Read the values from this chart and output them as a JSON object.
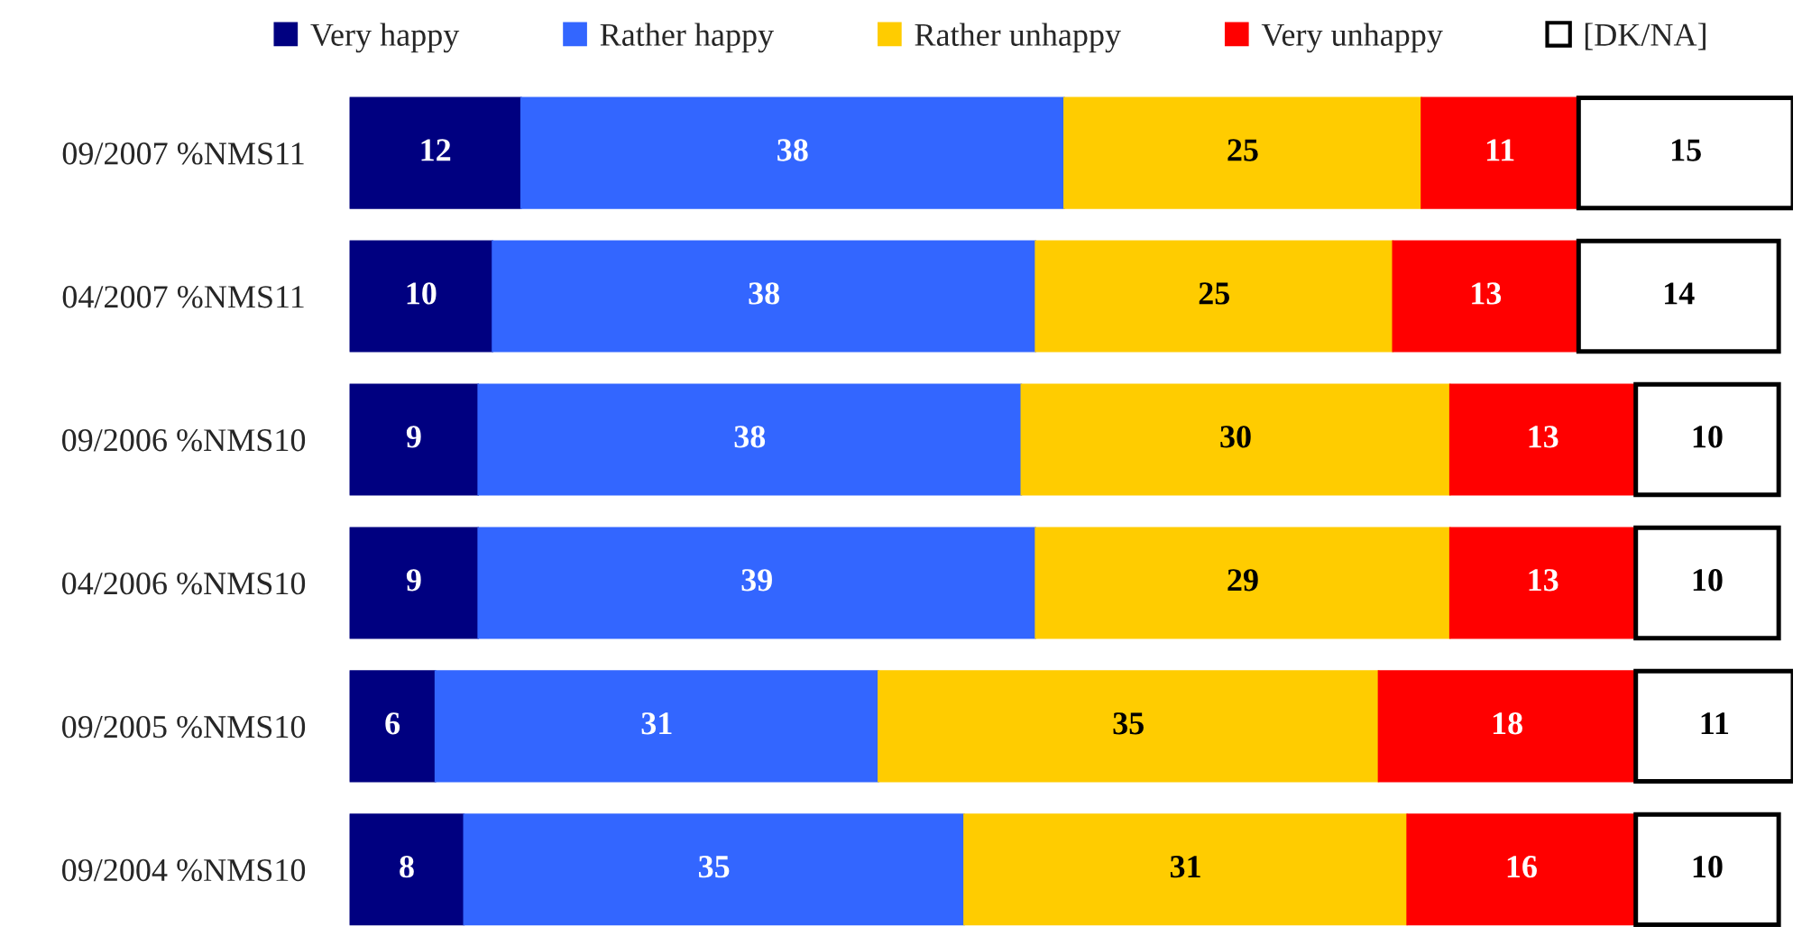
{
  "chart_data": {
    "type": "bar",
    "orientation": "horizontal",
    "stacked": true,
    "categories": [
      "09/2007 %NMS11",
      "04/2007 %NMS11",
      "09/2006 %NMS10",
      "04/2006 %NMS10",
      "09/2005 %NMS10",
      "09/2004 %NMS10"
    ],
    "series": [
      {
        "name": "Very happy",
        "color": "#000080",
        "values": [
          12,
          10,
          9,
          9,
          6,
          8
        ]
      },
      {
        "name": "Rather happy",
        "color": "#3366ff",
        "values": [
          38,
          38,
          38,
          39,
          31,
          35
        ]
      },
      {
        "name": "Rather unhappy",
        "color": "#ffcc00",
        "values": [
          25,
          25,
          30,
          29,
          35,
          31
        ]
      },
      {
        "name": "Very unhappy",
        "color": "#ff0000",
        "values": [
          11,
          13,
          13,
          13,
          18,
          16
        ]
      },
      {
        "name": "[DK/NA]",
        "color": "#ffffff",
        "values": [
          15,
          14,
          10,
          10,
          11,
          10
        ]
      }
    ],
    "data_labels": true,
    "legend": "top",
    "grid": false,
    "tick_labels": "y"
  }
}
